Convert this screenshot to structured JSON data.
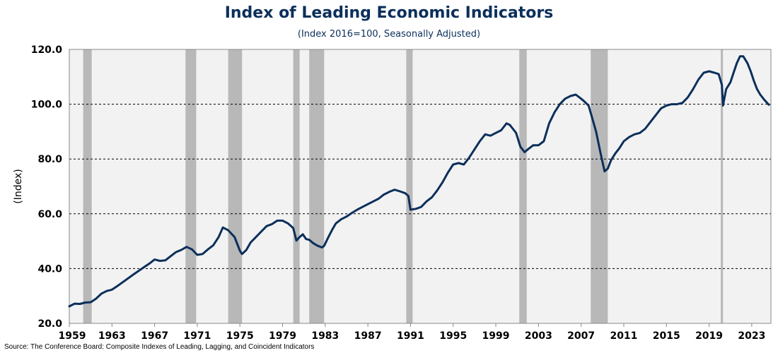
{
  "chart_data": {
    "type": "line",
    "title": "Index of Leading Economic Indicators",
    "subtitle": "(Index 2016=100, Seasonally Adjusted)",
    "ylabel": "(Index)",
    "xlabel": "",
    "xlim": [
      1959,
      2024.8
    ],
    "ylim": [
      20,
      120
    ],
    "yticks": [
      20.0,
      40.0,
      60.0,
      80.0,
      100.0,
      120.0
    ],
    "ytick_labels": [
      "20.0",
      "40.0",
      "60.0",
      "80.0",
      "100.0",
      "120.0"
    ],
    "xticks": [
      1959,
      1963,
      1967,
      1971,
      1975,
      1979,
      1983,
      1987,
      1991,
      1995,
      1999,
      2003,
      2007,
      2011,
      2015,
      2019,
      2023
    ],
    "grid": "horizontal dashed",
    "colors": {
      "line": "#0b2f5b",
      "plot_bg": "#f2f2f2",
      "recession": "#b8b8b8",
      "title": "#0b2f5b"
    },
    "recession_shading": [
      [
        1960.3,
        1961.1
      ],
      [
        1969.9,
        1970.9
      ],
      [
        1973.9,
        1975.2
      ],
      [
        1980.0,
        1980.6
      ],
      [
        1981.5,
        1982.9
      ],
      [
        1990.6,
        1991.2
      ],
      [
        2001.2,
        2001.9
      ],
      [
        2007.9,
        2009.5
      ],
      [
        2020.1,
        2020.3
      ]
    ],
    "series": [
      {
        "x": [
          1959.0,
          1959.5,
          1960.0,
          1960.5,
          1961.0,
          1961.5,
          1962.0,
          1962.5,
          1963.0,
          1963.5,
          1964.0,
          1965.0,
          1966.0,
          1966.5,
          1967.0,
          1967.5,
          1968.0,
          1968.5,
          1969.0,
          1969.5,
          1970.0,
          1970.5,
          1971.0,
          1971.5,
          1972.0,
          1972.5,
          1973.0,
          1973.4,
          1973.9,
          1974.5,
          1975.0,
          1975.2,
          1975.6,
          1976.0,
          1976.5,
          1977.0,
          1977.5,
          1978.0,
          1978.5,
          1979.0,
          1979.5,
          1980.0,
          1980.3,
          1980.6,
          1980.9,
          1981.2,
          1981.5,
          1981.9,
          1982.3,
          1982.7,
          1982.9,
          1983.3,
          1983.7,
          1984.0,
          1984.5,
          1985.0,
          1985.5,
          1986.0,
          1986.5,
          1987.0,
          1987.5,
          1988.0,
          1988.5,
          1989.0,
          1989.5,
          1990.0,
          1990.5,
          1990.8,
          1991.0,
          1991.5,
          1992.0,
          1992.5,
          1993.0,
          1993.5,
          1994.0,
          1994.5,
          1995.0,
          1995.5,
          1996.0,
          1996.5,
          1997.0,
          1997.5,
          1998.0,
          1998.5,
          1999.0,
          1999.5,
          2000.0,
          2000.3,
          2000.6,
          2000.9,
          2001.3,
          2001.7,
          2002.0,
          2002.5,
          2003.0,
          2003.5,
          2004.0,
          2004.5,
          2005.0,
          2005.5,
          2006.0,
          2006.5,
          2007.0,
          2007.3,
          2007.7,
          2008.0,
          2008.4,
          2008.8,
          2009.2,
          2009.5,
          2009.8,
          2010.2,
          2010.6,
          2011.0,
          2011.5,
          2012.0,
          2012.5,
          2013.0,
          2013.5,
          2014.0,
          2014.5,
          2015.0,
          2015.5,
          2016.0,
          2016.5,
          2017.0,
          2017.5,
          2018.0,
          2018.5,
          2019.0,
          2019.5,
          2019.9,
          2020.2,
          2020.3,
          2020.6,
          2021.0,
          2021.3,
          2021.6,
          2021.9,
          2022.2,
          2022.6,
          2022.9,
          2023.2,
          2023.5,
          2023.8,
          2024.2,
          2024.6
        ],
        "y": [
          26.2,
          27.2,
          27.1,
          27.6,
          27.7,
          29.0,
          30.8,
          31.8,
          32.3,
          33.6,
          35.0,
          37.8,
          40.5,
          41.8,
          43.3,
          42.8,
          43.0,
          44.5,
          46.0,
          46.8,
          47.9,
          47.0,
          45.0,
          45.3,
          47.0,
          48.5,
          51.5,
          55.0,
          54.0,
          51.5,
          46.5,
          45.3,
          46.8,
          49.5,
          51.5,
          53.5,
          55.5,
          56.2,
          57.5,
          57.5,
          56.5,
          54.8,
          50.2,
          51.5,
          52.5,
          50.8,
          50.5,
          49.2,
          48.3,
          47.7,
          48.3,
          51.5,
          54.5,
          56.5,
          58.0,
          59.0,
          60.3,
          61.5,
          62.5,
          63.5,
          64.5,
          65.5,
          67.0,
          68.0,
          68.8,
          68.2,
          67.5,
          66.5,
          61.5,
          61.8,
          62.5,
          64.5,
          66.0,
          68.5,
          71.5,
          75.0,
          78.0,
          78.5,
          78.0,
          80.5,
          83.5,
          86.5,
          89.0,
          88.5,
          89.5,
          90.5,
          93.0,
          92.5,
          91.0,
          89.5,
          84.5,
          82.5,
          83.5,
          85.0,
          85.0,
          86.5,
          93.0,
          97.0,
          100.0,
          102.0,
          103.0,
          103.5,
          102.0,
          101.0,
          99.5,
          95.5,
          90.0,
          82.5,
          75.5,
          76.5,
          79.5,
          82.0,
          84.0,
          86.5,
          88.0,
          89.0,
          89.5,
          91.0,
          93.5,
          96.0,
          98.5,
          99.5,
          100.0,
          100.0,
          100.5,
          102.5,
          105.5,
          109.0,
          111.5,
          112.0,
          111.5,
          111.0,
          107.0,
          99.5,
          105.5,
          108.0,
          111.5,
          115.0,
          117.5,
          117.5,
          115.0,
          112.0,
          108.5,
          105.5,
          103.5,
          101.5,
          99.8
        ]
      }
    ]
  },
  "source": "Source: The Conference Board: Composite Indexes of Leading, Lagging, and Coincident Indicators"
}
